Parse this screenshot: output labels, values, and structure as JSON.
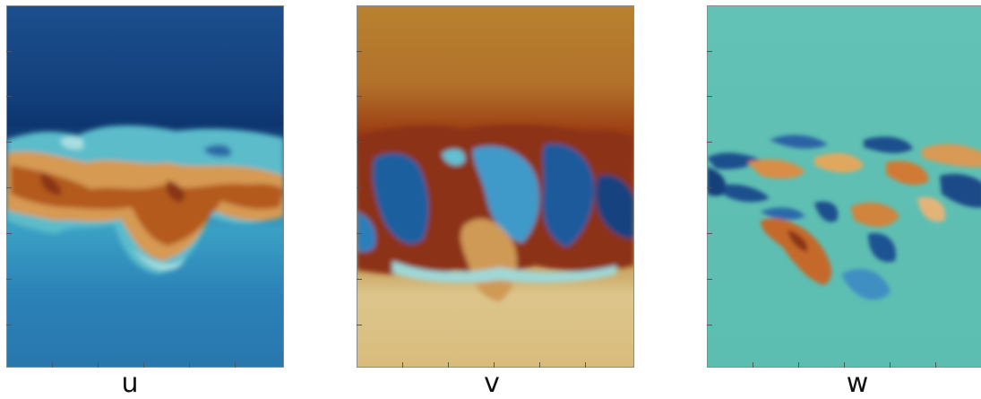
{
  "panels": [
    {
      "id": "u",
      "label": "u",
      "colors": {
        "bg_top": "#1d4f8e",
        "bg_dark": "#0f3c76",
        "bg_bottom": "#2d7fb3",
        "band_warm": "#b75f21",
        "band_mid": "#d39a4f",
        "band_cool": "#55b8c9",
        "band_light": "#a8dfe0"
      }
    },
    {
      "id": "v",
      "label": "v",
      "colors": {
        "bg_top": "#b7812f",
        "bg_dark": "#9d3f12",
        "bg_bottom": "#dcc389",
        "band_warm": "#8f3114",
        "band_mid": "#c87a35",
        "band_cool": "#1d66a5",
        "band_light": "#5fbfd2"
      }
    },
    {
      "id": "w",
      "label": "w",
      "colors": {
        "bg_top": "#62c2b5",
        "bg_dark": "#1c4e8d",
        "bg_bottom": "#5ebfb3",
        "band_warm": "#c86a2d",
        "band_mid": "#e6c98b",
        "band_cool": "#2a6fb0",
        "band_light": "#9fdcd6"
      }
    }
  ]
}
